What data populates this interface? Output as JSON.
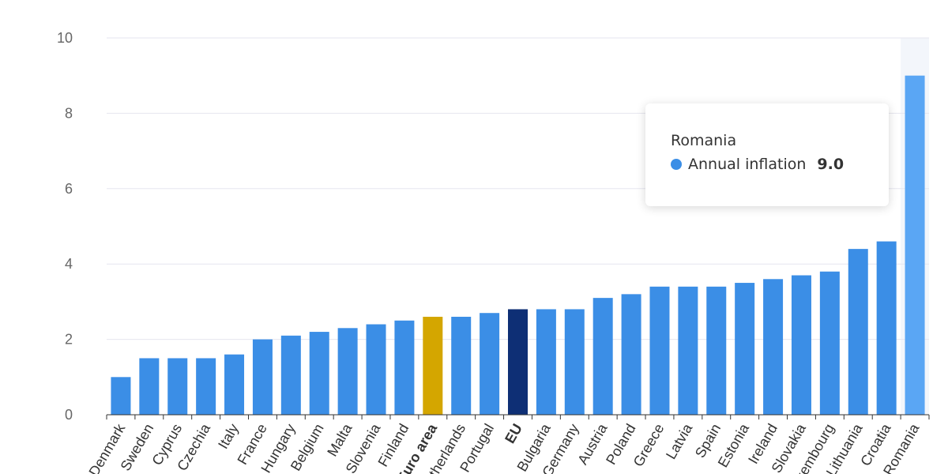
{
  "chart_data": {
    "type": "bar",
    "ylim": [
      0,
      10
    ],
    "yticks": [
      "0",
      "2",
      "4",
      "6",
      "8",
      "10"
    ],
    "grid": true,
    "categories": [
      "Denmark",
      "Sweden",
      "Cyprus",
      "Czechia",
      "Italy",
      "France",
      "Hungary",
      "Belgium",
      "Malta",
      "Slovenia",
      "Finland",
      "Euro area",
      "Netherlands",
      "Portugal",
      "EU",
      "Bulgaria",
      "Germany",
      "Austria",
      "Poland",
      "Greece",
      "Latvia",
      "Spain",
      "Estonia",
      "Ireland",
      "Slovakia",
      "Luxembourg",
      "Lithuania",
      "Croatia",
      "Romania"
    ],
    "series": [
      {
        "name": "Annual inflation",
        "values": [
          1.0,
          1.5,
          1.5,
          1.5,
          1.6,
          2.0,
          2.1,
          2.2,
          2.3,
          2.4,
          2.5,
          2.6,
          2.6,
          2.7,
          2.8,
          2.8,
          2.8,
          3.1,
          3.2,
          3.4,
          3.4,
          3.4,
          3.5,
          3.6,
          3.7,
          3.8,
          4.4,
          4.6,
          9.0
        ]
      }
    ],
    "highlight": {
      "Euro area": "#d4a600",
      "EU": "#0e2f75"
    },
    "hovered": "Romania"
  },
  "colors": {
    "bar": "#3b8ee6",
    "hover_bar": "#5aa6f4",
    "hover_band": "#f3f6fb",
    "grid": "#e6e6ef"
  },
  "tooltip": {
    "title": "Romania",
    "series_name": "Annual inflation",
    "value": "9.0"
  }
}
